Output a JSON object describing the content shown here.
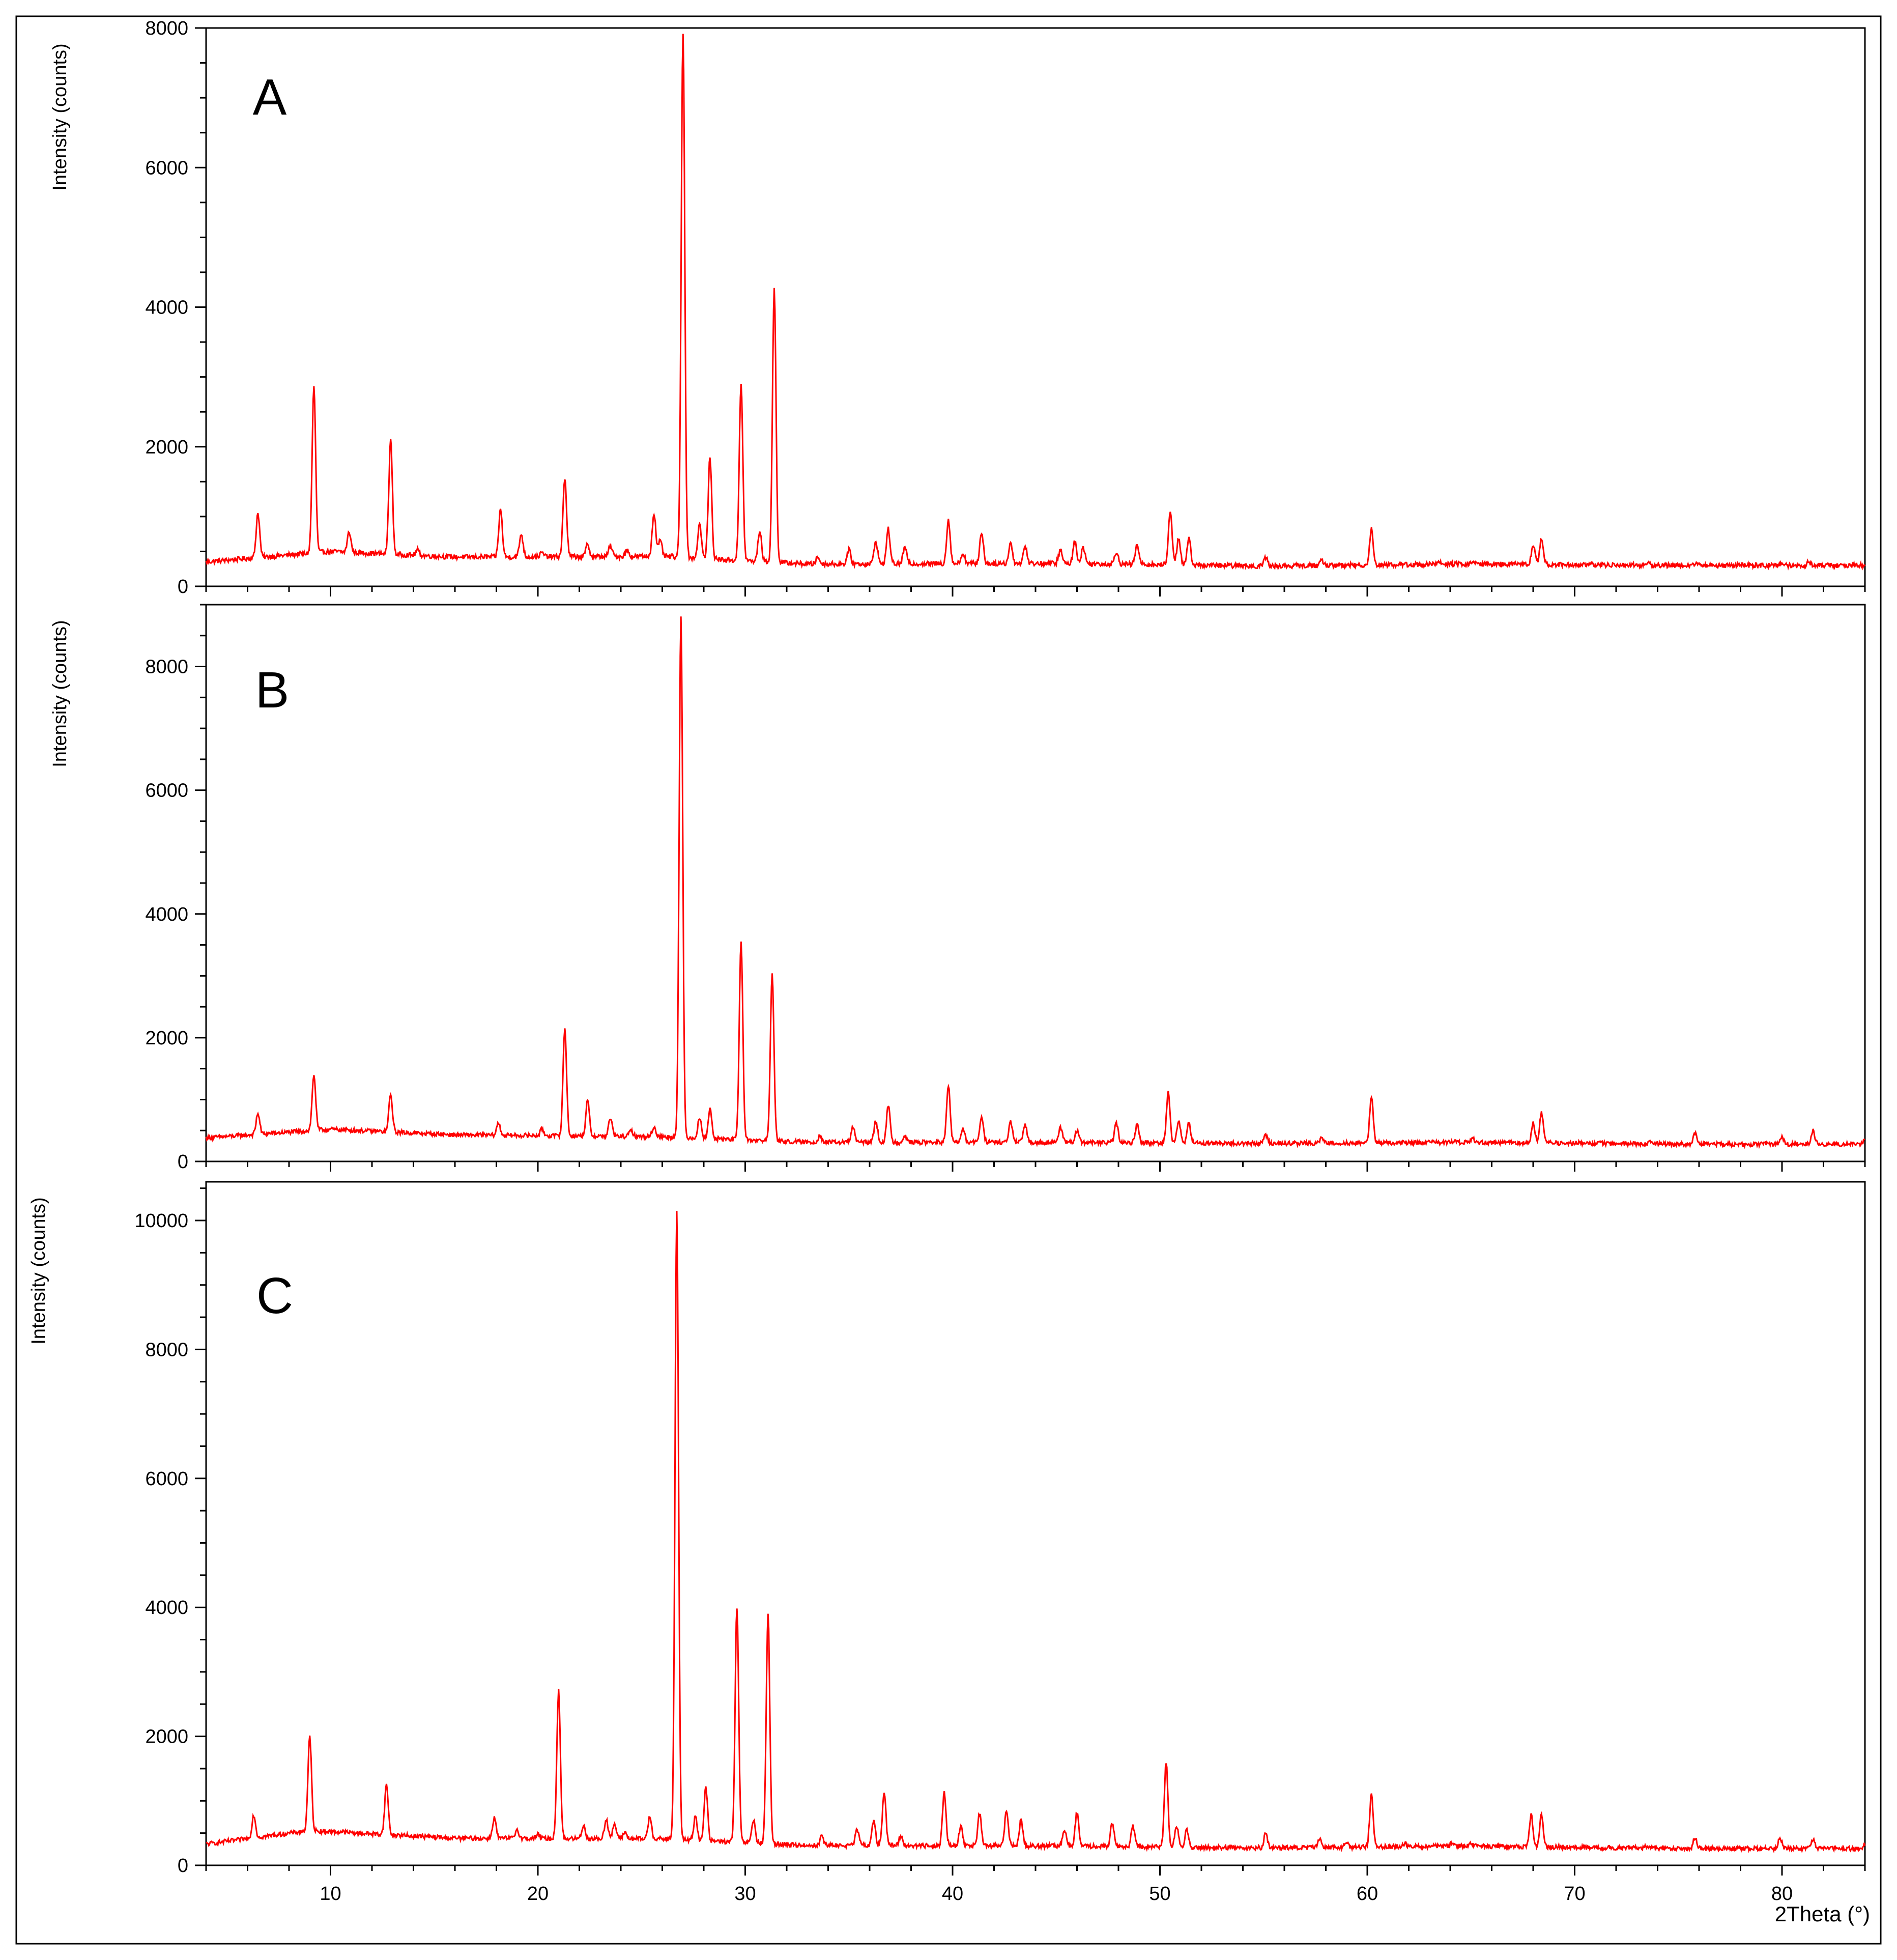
{
  "chart_data": {
    "type": "line",
    "xlabel": "2Theta (°)",
    "xlim": [
      4,
      84
    ],
    "xticks": [
      10,
      20,
      30,
      40,
      50,
      60,
      70,
      80
    ],
    "series_color": "#ff0000",
    "panels": [
      {
        "label": "A",
        "ylabel": "Intensity (counts)",
        "ylim": [
          0,
          8000
        ],
        "yticks": [
          0,
          2000,
          4000,
          6000,
          8000
        ],
        "baseline": [
          [
            4,
            350
          ],
          [
            10,
            500
          ],
          [
            16,
            420
          ],
          [
            26,
            430
          ],
          [
            33,
            320
          ],
          [
            45,
            330
          ],
          [
            55,
            290
          ],
          [
            65,
            320
          ],
          [
            75,
            300
          ],
          [
            84,
            300
          ]
        ],
        "peaks": [
          [
            6.5,
            1050
          ],
          [
            9.2,
            2850
          ],
          [
            10.9,
            780
          ],
          [
            12.9,
            2100
          ],
          [
            14.2,
            520
          ],
          [
            18.2,
            1100
          ],
          [
            19.2,
            750
          ],
          [
            20.2,
            480
          ],
          [
            21.3,
            1550
          ],
          [
            22.4,
            600
          ],
          [
            23.5,
            580
          ],
          [
            24.3,
            520
          ],
          [
            25.6,
            1050
          ],
          [
            25.9,
            650
          ],
          [
            27.0,
            7950
          ],
          [
            27.8,
            900
          ],
          [
            28.3,
            1850
          ],
          [
            29.8,
            2900
          ],
          [
            30.7,
            800
          ],
          [
            31.4,
            4250
          ],
          [
            33.5,
            420
          ],
          [
            35.0,
            520
          ],
          [
            36.3,
            650
          ],
          [
            36.9,
            820
          ],
          [
            37.7,
            560
          ],
          [
            39.8,
            950
          ],
          [
            40.5,
            480
          ],
          [
            41.4,
            780
          ],
          [
            42.8,
            620
          ],
          [
            43.5,
            580
          ],
          [
            45.2,
            520
          ],
          [
            45.9,
            650
          ],
          [
            46.3,
            560
          ],
          [
            47.9,
            500
          ],
          [
            48.9,
            600
          ],
          [
            50.5,
            1100
          ],
          [
            50.9,
            700
          ],
          [
            51.4,
            680
          ],
          [
            55.1,
            420
          ],
          [
            57.8,
            380
          ],
          [
            60.2,
            820
          ],
          [
            63.5,
            340
          ],
          [
            65.1,
            350
          ],
          [
            68.0,
            600
          ],
          [
            68.4,
            680
          ],
          [
            73.6,
            320
          ],
          [
            75.8,
            330
          ],
          [
            80.0,
            330
          ],
          [
            81.3,
            350
          ]
        ]
      },
      {
        "label": "B",
        "ylabel": "Intensity (counts)",
        "ylim": [
          0,
          9000
        ],
        "yticks": [
          0,
          2000,
          4000,
          6000,
          8000
        ],
        "baseline": [
          [
            4,
            380
          ],
          [
            10,
            520
          ],
          [
            16,
            430
          ],
          [
            26,
            400
          ],
          [
            33,
            310
          ],
          [
            45,
            310
          ],
          [
            55,
            290
          ],
          [
            65,
            310
          ],
          [
            75,
            280
          ],
          [
            84,
            280
          ]
        ],
        "peaks": [
          [
            6.5,
            780
          ],
          [
            9.2,
            1400
          ],
          [
            12.9,
            1080
          ],
          [
            18.1,
            620
          ],
          [
            20.2,
            520
          ],
          [
            21.3,
            2150
          ],
          [
            22.4,
            980
          ],
          [
            23.5,
            700
          ],
          [
            24.5,
            500
          ],
          [
            25.6,
            560
          ],
          [
            26.9,
            8800
          ],
          [
            27.8,
            700
          ],
          [
            28.3,
            850
          ],
          [
            29.8,
            3550
          ],
          [
            31.3,
            3050
          ],
          [
            33.6,
            420
          ],
          [
            35.2,
            560
          ],
          [
            36.3,
            650
          ],
          [
            36.9,
            900
          ],
          [
            37.7,
            420
          ],
          [
            39.8,
            1220
          ],
          [
            40.5,
            520
          ],
          [
            41.4,
            740
          ],
          [
            42.8,
            640
          ],
          [
            43.5,
            600
          ],
          [
            45.2,
            560
          ],
          [
            46.0,
            500
          ],
          [
            47.9,
            620
          ],
          [
            48.9,
            600
          ],
          [
            50.4,
            1120
          ],
          [
            50.9,
            660
          ],
          [
            51.4,
            620
          ],
          [
            55.1,
            430
          ],
          [
            57.8,
            380
          ],
          [
            60.2,
            1050
          ],
          [
            64.2,
            330
          ],
          [
            65.1,
            360
          ],
          [
            68.0,
            620
          ],
          [
            68.4,
            780
          ],
          [
            73.6,
            320
          ],
          [
            75.8,
            460
          ],
          [
            80.0,
            400
          ],
          [
            81.5,
            500
          ],
          [
            84.0,
            340
          ]
        ]
      },
      {
        "label": "C",
        "ylabel": "Intensity (counts)",
        "ylim": [
          0,
          10600
        ],
        "yticks": [
          0,
          2000,
          4000,
          6000,
          8000,
          10000
        ],
        "baseline": [
          [
            4,
            330
          ],
          [
            9,
            540
          ],
          [
            16,
            420
          ],
          [
            26,
            410
          ],
          [
            33,
            310
          ],
          [
            45,
            300
          ],
          [
            55,
            270
          ],
          [
            65,
            300
          ],
          [
            75,
            260
          ],
          [
            84,
            260
          ]
        ],
        "peaks": [
          [
            6.3,
            780
          ],
          [
            9.0,
            2000
          ],
          [
            10.6,
            520
          ],
          [
            12.7,
            1250
          ],
          [
            17.9,
            740
          ],
          [
            19.0,
            560
          ],
          [
            20.0,
            480
          ],
          [
            21.0,
            2700
          ],
          [
            22.2,
            620
          ],
          [
            23.3,
            720
          ],
          [
            23.7,
            640
          ],
          [
            24.2,
            520
          ],
          [
            25.4,
            760
          ],
          [
            26.7,
            10150
          ],
          [
            27.6,
            760
          ],
          [
            28.1,
            1200
          ],
          [
            29.6,
            4000
          ],
          [
            30.4,
            700
          ],
          [
            31.1,
            3900
          ],
          [
            33.7,
            460
          ],
          [
            35.4,
            560
          ],
          [
            36.2,
            700
          ],
          [
            36.7,
            1150
          ],
          [
            37.5,
            460
          ],
          [
            39.6,
            1120
          ],
          [
            40.4,
            600
          ],
          [
            41.3,
            800
          ],
          [
            42.6,
            860
          ],
          [
            43.3,
            700
          ],
          [
            45.4,
            560
          ],
          [
            46.0,
            820
          ],
          [
            47.7,
            660
          ],
          [
            48.7,
            600
          ],
          [
            50.3,
            1600
          ],
          [
            50.8,
            620
          ],
          [
            51.3,
            560
          ],
          [
            55.1,
            500
          ],
          [
            57.7,
            400
          ],
          [
            59.0,
            360
          ],
          [
            60.2,
            1100
          ],
          [
            61.8,
            340
          ],
          [
            64.1,
            350
          ],
          [
            65.0,
            330
          ],
          [
            67.9,
            780
          ],
          [
            68.4,
            800
          ],
          [
            73.5,
            300
          ],
          [
            75.8,
            430
          ],
          [
            79.9,
            440
          ],
          [
            81.5,
            390
          ],
          [
            84.0,
            320
          ]
        ]
      }
    ]
  }
}
